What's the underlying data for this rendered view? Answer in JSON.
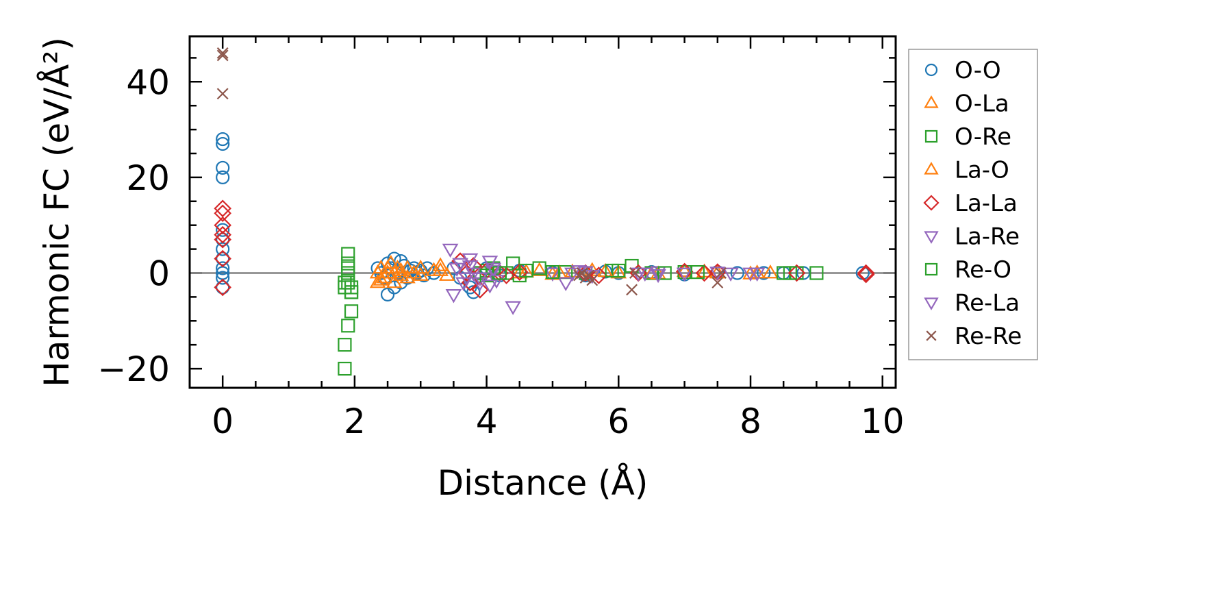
{
  "chart_data": {
    "type": "scatter",
    "xlabel": "Distance (Å)",
    "ylabel": "Harmonic FC (eV/Å²)",
    "xlim": [
      -0.5,
      10.2
    ],
    "ylim": [
      -24,
      49.5
    ],
    "x_ticks": [
      0,
      2,
      4,
      6,
      8,
      10
    ],
    "x_tick_labels": [
      "0",
      "2",
      "4",
      "6",
      "8",
      "10"
    ],
    "y_ticks": [
      -20,
      0,
      20,
      40
    ],
    "y_tick_labels": [
      "−20",
      "0",
      "20",
      "40"
    ],
    "x_minor_step": 0.5,
    "y_minor_step": 5,
    "zero_line": true,
    "grid": false,
    "legend_position": "outside-right",
    "series": [
      {
        "name": "O-O",
        "marker": "circle",
        "color": "#1f77b4",
        "points": [
          [
            0,
            28
          ],
          [
            0,
            27
          ],
          [
            0,
            22
          ],
          [
            0,
            20
          ],
          [
            0,
            9
          ],
          [
            0,
            7
          ],
          [
            0,
            5
          ],
          [
            0,
            3
          ],
          [
            0,
            1
          ],
          [
            0,
            0
          ],
          [
            0,
            -1
          ],
          [
            0,
            -3
          ],
          [
            2.35,
            1
          ],
          [
            2.4,
            0
          ],
          [
            2.45,
            -1
          ],
          [
            2.5,
            2
          ],
          [
            2.5,
            -4.5
          ],
          [
            2.55,
            1
          ],
          [
            2.6,
            3
          ],
          [
            2.6,
            -3
          ],
          [
            2.65,
            0
          ],
          [
            2.7,
            2.5
          ],
          [
            2.7,
            -2
          ],
          [
            2.75,
            1.5
          ],
          [
            2.8,
            -1
          ],
          [
            2.85,
            0.5
          ],
          [
            2.9,
            1
          ],
          [
            2.95,
            0
          ],
          [
            3.0,
            0.5
          ],
          [
            3.05,
            -0.5
          ],
          [
            3.1,
            1
          ],
          [
            3.2,
            0
          ],
          [
            3.5,
            1
          ],
          [
            3.6,
            -1
          ],
          [
            3.75,
            -3
          ],
          [
            3.8,
            -4
          ],
          [
            4.0,
            1
          ],
          [
            4.2,
            -0.5
          ],
          [
            4.5,
            0.5
          ],
          [
            5.0,
            0
          ],
          [
            5.5,
            -0.5
          ],
          [
            5.8,
            0.3
          ],
          [
            6.0,
            0
          ],
          [
            6.5,
            0.2
          ],
          [
            7.0,
            -0.3
          ],
          [
            7.5,
            0.2
          ],
          [
            7.8,
            0
          ],
          [
            8.2,
            0
          ],
          [
            8.5,
            0
          ],
          [
            8.8,
            0
          ],
          [
            9.7,
            0
          ]
        ]
      },
      {
        "name": "O-La",
        "marker": "triangle-up",
        "color": "#ff7f0e",
        "points": [
          [
            2.35,
            -2
          ],
          [
            2.4,
            1
          ],
          [
            2.45,
            -1
          ],
          [
            2.5,
            0
          ],
          [
            2.55,
            2
          ],
          [
            2.6,
            -2
          ],
          [
            2.65,
            1
          ],
          [
            2.7,
            0.5
          ],
          [
            2.8,
            -1
          ],
          [
            2.9,
            0
          ],
          [
            3.0,
            1
          ],
          [
            3.2,
            0.5
          ],
          [
            3.3,
            1.5
          ],
          [
            3.4,
            -0.5
          ],
          [
            4.5,
            0
          ],
          [
            4.8,
            0.5
          ],
          [
            5.0,
            -0.3
          ],
          [
            5.3,
            0.2
          ],
          [
            5.6,
            0.5
          ],
          [
            6.0,
            0
          ],
          [
            6.5,
            -0.2
          ],
          [
            7.0,
            0.3
          ],
          [
            7.5,
            0
          ],
          [
            8.0,
            -0.2
          ],
          [
            8.3,
            0
          ]
        ]
      },
      {
        "name": "O-Re",
        "marker": "square",
        "color": "#2ca02c",
        "points": [
          [
            1.85,
            -20
          ],
          [
            1.85,
            -15
          ],
          [
            1.9,
            -11
          ],
          [
            1.95,
            -8
          ],
          [
            1.95,
            -3
          ],
          [
            1.9,
            0
          ],
          [
            1.9,
            2
          ],
          [
            1.9,
            4
          ],
          [
            1.85,
            -2
          ],
          [
            1.95,
            -4
          ],
          [
            3.9,
            0
          ],
          [
            4.0,
            0.5
          ],
          [
            4.1,
            1
          ],
          [
            4.3,
            0
          ],
          [
            4.4,
            2
          ],
          [
            4.5,
            -0.5
          ],
          [
            4.8,
            1
          ],
          [
            5.2,
            0.2
          ],
          [
            5.5,
            0
          ],
          [
            6.0,
            0.5
          ],
          [
            6.2,
            1.5
          ],
          [
            6.5,
            0
          ],
          [
            7.0,
            0.2
          ],
          [
            8.5,
            0
          ],
          [
            8.7,
            0
          ],
          [
            9.0,
            0
          ]
        ]
      },
      {
        "name": "La-O",
        "marker": "triangle-up",
        "color": "#ff7f0e",
        "points": [
          [
            2.35,
            0
          ],
          [
            2.4,
            -1.5
          ],
          [
            2.5,
            1
          ],
          [
            2.6,
            0
          ],
          [
            2.7,
            -0.5
          ],
          [
            2.8,
            1
          ],
          [
            3.0,
            -0.5
          ],
          [
            3.3,
            0.5
          ],
          [
            4.6,
            0.2
          ],
          [
            5.1,
            0
          ],
          [
            5.8,
            0.3
          ],
          [
            6.6,
            -0.2
          ],
          [
            7.3,
            0.2
          ],
          [
            8.1,
            0
          ]
        ]
      },
      {
        "name": "La-La",
        "marker": "diamond",
        "color": "#d62728",
        "points": [
          [
            0,
            13.5
          ],
          [
            0,
            12.5
          ],
          [
            0,
            10
          ],
          [
            0,
            8
          ],
          [
            0,
            7
          ],
          [
            0,
            3
          ],
          [
            0,
            -3
          ],
          [
            3.6,
            2.5
          ],
          [
            3.7,
            0
          ],
          [
            3.75,
            -2
          ],
          [
            3.8,
            1.5
          ],
          [
            3.9,
            -3.5
          ],
          [
            4.0,
            0.5
          ],
          [
            4.2,
            0
          ],
          [
            4.3,
            -0.5
          ],
          [
            4.5,
            0.2
          ],
          [
            5.5,
            0
          ],
          [
            5.7,
            -0.5
          ],
          [
            6.3,
            0
          ],
          [
            7.0,
            0.3
          ],
          [
            7.3,
            0
          ],
          [
            7.5,
            0.2
          ],
          [
            8.7,
            0
          ],
          [
            9.75,
            -0.3
          ],
          [
            9.75,
            0
          ]
        ]
      },
      {
        "name": "La-Re",
        "marker": "triangle-down",
        "color": "#9467bd",
        "points": [
          [
            3.45,
            5
          ],
          [
            3.5,
            -4.5
          ],
          [
            3.6,
            2
          ],
          [
            3.7,
            -1
          ],
          [
            3.75,
            3
          ],
          [
            3.8,
            0
          ],
          [
            3.9,
            -2
          ],
          [
            4.05,
            2.5
          ],
          [
            4.1,
            0.5
          ],
          [
            4.15,
            -1.5
          ],
          [
            4.4,
            -7
          ],
          [
            5.0,
            0
          ],
          [
            5.2,
            -2
          ],
          [
            5.4,
            0.5
          ],
          [
            5.6,
            -0.5
          ],
          [
            6.3,
            0
          ],
          [
            6.6,
            0.3
          ],
          [
            7.0,
            0
          ],
          [
            7.5,
            0.2
          ],
          [
            8.1,
            0
          ]
        ]
      },
      {
        "name": "Re-O",
        "marker": "square",
        "color": "#2ca02c",
        "points": [
          [
            1.85,
            -3
          ],
          [
            1.9,
            -2
          ],
          [
            1.95,
            -4
          ],
          [
            1.9,
            1
          ],
          [
            4.0,
            -0.5
          ],
          [
            4.2,
            0
          ],
          [
            4.6,
            0.5
          ],
          [
            5.0,
            0.2
          ],
          [
            5.9,
            0.5
          ],
          [
            6.7,
            0
          ],
          [
            7.2,
            0.2
          ],
          [
            8.6,
            0
          ]
        ]
      },
      {
        "name": "Re-La",
        "marker": "triangle-down",
        "color": "#9467bd",
        "points": [
          [
            3.55,
            1
          ],
          [
            3.65,
            -2
          ],
          [
            3.75,
            1.5
          ],
          [
            3.9,
            -1
          ],
          [
            4.05,
            -2.5
          ],
          [
            4.1,
            1
          ],
          [
            5.3,
            0
          ],
          [
            5.5,
            0.3
          ],
          [
            6.4,
            0
          ],
          [
            6.6,
            -0.3
          ],
          [
            7.7,
            0
          ],
          [
            8.0,
            0
          ]
        ]
      },
      {
        "name": "Re-Re",
        "marker": "x",
        "color": "#8c564b",
        "points": [
          [
            0,
            46
          ],
          [
            0,
            45.5
          ],
          [
            0,
            37.5
          ],
          [
            5.4,
            -0.5
          ],
          [
            5.45,
            0
          ],
          [
            5.5,
            -1
          ],
          [
            5.55,
            -0.5
          ],
          [
            5.6,
            -1.5
          ],
          [
            6.2,
            -3.5
          ],
          [
            6.25,
            0
          ],
          [
            7.5,
            -2
          ],
          [
            7.55,
            0
          ]
        ]
      }
    ]
  }
}
